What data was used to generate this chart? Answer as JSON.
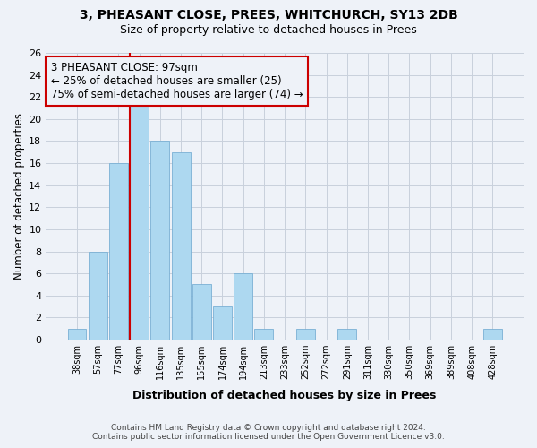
{
  "title": "3, PHEASANT CLOSE, PREES, WHITCHURCH, SY13 2DB",
  "subtitle": "Size of property relative to detached houses in Prees",
  "xlabel": "Distribution of detached houses by size in Prees",
  "ylabel": "Number of detached properties",
  "bar_labels": [
    "38sqm",
    "57sqm",
    "77sqm",
    "96sqm",
    "116sqm",
    "135sqm",
    "155sqm",
    "174sqm",
    "194sqm",
    "213sqm",
    "233sqm",
    "252sqm",
    "272sqm",
    "291sqm",
    "311sqm",
    "330sqm",
    "350sqm",
    "369sqm",
    "389sqm",
    "408sqm",
    "428sqm"
  ],
  "bar_values": [
    1,
    8,
    16,
    22,
    18,
    17,
    5,
    3,
    6,
    1,
    0,
    1,
    0,
    1,
    0,
    0,
    0,
    0,
    0,
    0,
    1
  ],
  "bar_color": "#add8f0",
  "bar_edge_color": "#7ab0d4",
  "property_line_index": 3,
  "annotation_title": "3 PHEASANT CLOSE: 97sqm",
  "annotation_line1": "← 25% of detached houses are smaller (25)",
  "annotation_line2": "75% of semi-detached houses are larger (74) →",
  "annotation_box_color": "#cc0000",
  "ylim": [
    0,
    26
  ],
  "yticks": [
    0,
    2,
    4,
    6,
    8,
    10,
    12,
    14,
    16,
    18,
    20,
    22,
    24,
    26
  ],
  "grid_color": "#c8d0dc",
  "bg_color": "#eef2f8",
  "footer_line1": "Contains HM Land Registry data © Crown copyright and database right 2024.",
  "footer_line2": "Contains public sector information licensed under the Open Government Licence v3.0.",
  "title_fontsize": 10,
  "subtitle_fontsize": 9,
  "ylabel_fontsize": 8.5,
  "xlabel_fontsize": 9,
  "footer_fontsize": 6.5,
  "ann_fontsize": 8.5,
  "xtick_fontsize": 7,
  "ytick_fontsize": 8
}
